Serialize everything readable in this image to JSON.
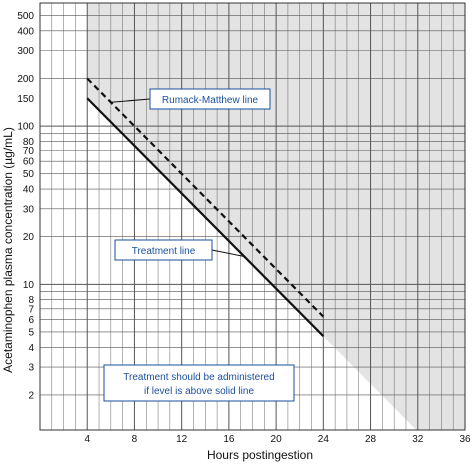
{
  "chart_data": {
    "type": "line",
    "xlabel": "Hours postingestion",
    "ylabel": "Acetaminophen plasma concentration (µg/mL)",
    "x_scale": "linear",
    "y_scale": "log",
    "xlim": [
      0,
      36
    ],
    "ylim": [
      1.2,
      600
    ],
    "x_ticks": [
      4,
      8,
      12,
      16,
      20,
      24,
      28,
      32,
      36
    ],
    "y_tick_labels": [
      2,
      3,
      4,
      5,
      6,
      7,
      8,
      10,
      20,
      30,
      40,
      50,
      60,
      70,
      80,
      100,
      150,
      200,
      300,
      400,
      500
    ],
    "grid": true,
    "series": [
      {
        "name": "Rumack-Matthew line",
        "style": "dashed",
        "color": "#111111",
        "x": [
          4,
          24
        ],
        "y": [
          200,
          6.25
        ]
      },
      {
        "name": "Treatment line",
        "style": "solid",
        "color": "#111111",
        "x": [
          4,
          24
        ],
        "y": [
          150,
          4.7
        ]
      }
    ],
    "shaded_region": {
      "description_color": "#e3e3e3",
      "from_x": 4,
      "above_series": "Treatment line"
    },
    "annotations": [
      {
        "text": "Rumack-Matthew line",
        "points_to": "Rumack-Matthew line",
        "at_x": 6
      },
      {
        "text": "Treatment line",
        "points_to": "Treatment line",
        "at_x": 17.3
      },
      {
        "text_lines": [
          "Treatment should be administered",
          "if level is above solid line"
        ]
      }
    ],
    "colors": {
      "grid": "#555555",
      "shade": "#e3e3e3",
      "callout_border": "#1a4f9c",
      "callout_text": "#1a4f9c"
    }
  }
}
